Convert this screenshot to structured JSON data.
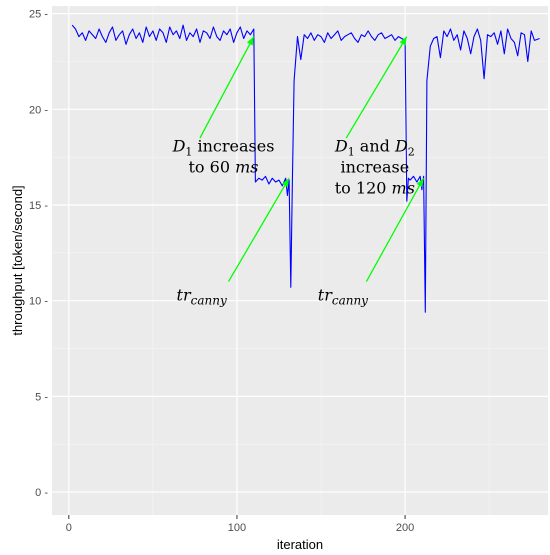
{
  "chart_data": {
    "type": "line",
    "xlabel": "iteration",
    "ylabel": "throughput [token/second]",
    "xlim": [
      -10,
      285
    ],
    "ylim": [
      -1.2,
      25.4
    ],
    "x_ticks": [
      0,
      100,
      200
    ],
    "x_tick_labels": [
      "0",
      "100",
      "200"
    ],
    "y_ticks": [
      0,
      5,
      10,
      15,
      20,
      25
    ],
    "y_tick_labels": [
      "0 -",
      "5 -",
      "10 -",
      "15 -",
      "20 -",
      "25 -"
    ],
    "grid": true,
    "background": "#ebebeb",
    "line_color": "#0000ff",
    "arrow_color": "#00ff00",
    "legend": "none",
    "series": [
      {
        "x": [
          2,
          4,
          6,
          8,
          10,
          12,
          14,
          16,
          18,
          20,
          22,
          24,
          26,
          28,
          30,
          32,
          34,
          36,
          38,
          40,
          42,
          44,
          46,
          48,
          50,
          52,
          54,
          56,
          58,
          60,
          62,
          64,
          66,
          68,
          70,
          72,
          74,
          76,
          78,
          80,
          82,
          84,
          86,
          88,
          90,
          92,
          94,
          96,
          98,
          100,
          102,
          104,
          106,
          108,
          110,
          111,
          113,
          115,
          117,
          119,
          121,
          123,
          125,
          127,
          129,
          130,
          131,
          132,
          133,
          134,
          136,
          138,
          140,
          142,
          144,
          146,
          148,
          150,
          152,
          154,
          156,
          158,
          160,
          162,
          164,
          166,
          168,
          170,
          172,
          174,
          176,
          178,
          180,
          182,
          184,
          186,
          188,
          190,
          192,
          194,
          196,
          198,
          200,
          201,
          202,
          203,
          205,
          207,
          209,
          210,
          211,
          212,
          213,
          215,
          217,
          219,
          221,
          223,
          225,
          227,
          229,
          231,
          233,
          235,
          237,
          239,
          241,
          243,
          245,
          247,
          249,
          251,
          253,
          255,
          257,
          259,
          261,
          263,
          265,
          267,
          269,
          271,
          273,
          275,
          277,
          280
        ],
        "y": [
          24.4,
          24.2,
          23.8,
          24.0,
          23.6,
          24.1,
          23.9,
          23.7,
          24.2,
          23.8,
          23.5,
          24.0,
          24.3,
          23.6,
          23.9,
          24.1,
          23.4,
          23.9,
          24.2,
          23.7,
          24.0,
          23.5,
          24.3,
          23.8,
          24.1,
          23.6,
          24.2,
          24.0,
          23.5,
          24.3,
          23.9,
          24.1,
          23.7,
          24.4,
          23.6,
          24.0,
          23.8,
          24.2,
          23.5,
          24.1,
          24.0,
          23.7,
          24.3,
          23.8,
          23.6,
          24.1,
          23.9,
          24.2,
          23.5,
          24.0,
          24.3,
          23.7,
          24.1,
          23.9,
          24.2,
          16.2,
          16.4,
          16.3,
          16.5,
          16.1,
          16.4,
          16.2,
          16.3,
          16.0,
          16.4,
          15.5,
          16.3,
          10.7,
          16.3,
          21.5,
          23.8,
          22.6,
          23.9,
          23.7,
          24.0,
          23.6,
          23.9,
          23.8,
          23.5,
          24.0,
          23.7,
          23.9,
          24.1,
          23.6,
          23.8,
          23.9,
          24.0,
          23.7,
          23.5,
          23.9,
          23.8,
          24.1,
          23.8,
          23.6,
          23.9,
          24.0,
          23.7,
          23.8,
          23.9,
          23.6,
          23.8,
          23.7,
          23.6,
          15.2,
          16.4,
          16.3,
          16.5,
          16.2,
          16.5,
          15.8,
          16.5,
          9.4,
          21.5,
          23.3,
          23.7,
          23.8,
          22.7,
          24.1,
          23.8,
          24.2,
          23.6,
          23.9,
          23.1,
          24.1,
          23.7,
          22.9,
          23.8,
          24.2,
          23.6,
          21.6,
          23.9,
          23.8,
          24.0,
          23.4,
          24.1,
          22.9,
          24.2,
          23.7,
          23.5,
          22.8,
          24.0,
          23.9,
          22.5,
          24.1,
          23.6,
          23.7
        ]
      }
    ],
    "annotations": [
      {
        "lines": [
          [
            "D",
            "1",
            " increases"
          ],
          [
            "to 60 ",
            "ms",
            ""
          ]
        ],
        "text_x": 92,
        "text_y1": 17.8,
        "text_y2": 16.7,
        "arrow_from": [
          78,
          18.5
        ],
        "arrow_to": [
          110,
          23.8
        ]
      },
      {
        "lines": [
          [
            "D",
            "1",
            " and "
          ],
          [
            "D",
            "2",
            ""
          ],
          [
            "increase"
          ],
          [
            "to 120 ",
            "ms"
          ]
        ],
        "text_x": 182,
        "text_y1": 17.8,
        "text_y2": 16.7,
        "text_y3": 15.6,
        "arrow_from": [
          165,
          18.5
        ],
        "arrow_to": [
          201,
          23.8
        ]
      },
      {
        "lines": [
          [
            "tr",
            "canny"
          ]
        ],
        "text_x": 79,
        "text_y": 10.0,
        "arrow_from": [
          95,
          11.0
        ],
        "arrow_to": [
          131,
          16.4
        ]
      },
      {
        "lines": [
          [
            "tr",
            "canny"
          ]
        ],
        "text_x": 163,
        "text_y": 10.0,
        "arrow_from": [
          177,
          11.0
        ],
        "arrow_to": [
          211,
          16.4
        ]
      }
    ]
  }
}
